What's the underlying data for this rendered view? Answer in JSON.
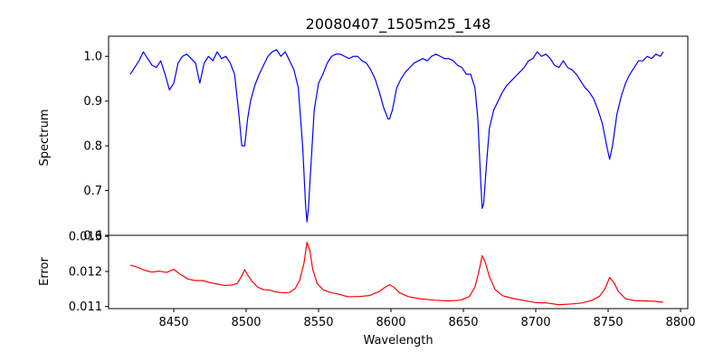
{
  "chart_data": [
    {
      "type": "line",
      "title": "20080407_1505m25_148",
      "xlabel": "",
      "ylabel": "Spectrum",
      "xlim": [
        8405,
        8805
      ],
      "ylim": [
        0.6,
        1.045
      ],
      "yticks": [
        0.6,
        0.7,
        0.8,
        0.9,
        1.0
      ],
      "ytick_labels": [
        "0.6",
        "0.7",
        "0.8",
        "0.9",
        "1.0"
      ],
      "grid": false,
      "series": [
        {
          "color": "#0000ff",
          "x": [
            8420,
            8423,
            8426,
            8429,
            8432,
            8435,
            8438,
            8441,
            8444,
            8447,
            8450,
            8453,
            8456,
            8459,
            8462,
            8465,
            8468,
            8471,
            8474,
            8477,
            8480,
            8483,
            8486,
            8489,
            8492,
            8495,
            8497,
            8499,
            8501,
            8503,
            8506,
            8509,
            8512,
            8515,
            8518,
            8521,
            8524,
            8527,
            8530,
            8533,
            8536,
            8539,
            8541,
            8542,
            8543,
            8545,
            8547,
            8550,
            8553,
            8556,
            8559,
            8562,
            8565,
            8568,
            8571,
            8574,
            8577,
            8580,
            8583,
            8586,
            8589,
            8592,
            8595,
            8598,
            8599,
            8601,
            8604,
            8607,
            8610,
            8613,
            8616,
            8619,
            8622,
            8625,
            8628,
            8631,
            8634,
            8637,
            8640,
            8643,
            8646,
            8649,
            8652,
            8655,
            8658,
            8660,
            8662,
            8663,
            8664,
            8666,
            8668,
            8671,
            8674,
            8677,
            8680,
            8683,
            8686,
            8689,
            8692,
            8695,
            8698,
            8701,
            8704,
            8707,
            8710,
            8713,
            8716,
            8719,
            8722,
            8725,
            8728,
            8731,
            8734,
            8737,
            8740,
            8743,
            8746,
            8749,
            8751,
            8753,
            8756,
            8759,
            8762,
            8765,
            8768,
            8771,
            8774,
            8777,
            8780,
            8783,
            8786,
            8788
          ],
          "y": [
            0.96,
            0.975,
            0.99,
            1.01,
            0.995,
            0.98,
            0.975,
            0.99,
            0.96,
            0.925,
            0.94,
            0.985,
            1.0,
            1.005,
            0.995,
            0.985,
            0.94,
            0.985,
            1.0,
            0.99,
            1.01,
            0.995,
            1.0,
            0.985,
            0.96,
            0.87,
            0.8,
            0.8,
            0.86,
            0.9,
            0.935,
            0.96,
            0.98,
            1.0,
            1.01,
            1.015,
            1.0,
            1.01,
            0.99,
            0.97,
            0.93,
            0.8,
            0.67,
            0.63,
            0.66,
            0.77,
            0.88,
            0.94,
            0.96,
            0.985,
            1.0,
            1.005,
            1.005,
            1.0,
            0.995,
            1.0,
            1.0,
            0.99,
            0.985,
            0.97,
            0.95,
            0.92,
            0.885,
            0.86,
            0.86,
            0.88,
            0.93,
            0.95,
            0.965,
            0.975,
            0.985,
            0.99,
            0.995,
            0.99,
            1.0,
            1.005,
            1.0,
            0.995,
            0.995,
            0.99,
            0.98,
            0.975,
            0.96,
            0.96,
            0.93,
            0.86,
            0.72,
            0.66,
            0.67,
            0.76,
            0.84,
            0.88,
            0.9,
            0.92,
            0.935,
            0.945,
            0.955,
            0.965,
            0.975,
            0.99,
            0.995,
            1.01,
            1.0,
            1.005,
            0.995,
            0.98,
            0.975,
            0.99,
            0.975,
            0.97,
            0.96,
            0.945,
            0.93,
            0.92,
            0.905,
            0.88,
            0.85,
            0.8,
            0.77,
            0.8,
            0.87,
            0.91,
            0.94,
            0.96,
            0.975,
            0.99,
            0.99,
            1.0,
            0.995,
            1.005,
            1.0,
            1.01
          ]
        }
      ]
    },
    {
      "type": "line",
      "title": "",
      "xlabel": "Wavelength",
      "ylabel": "Error",
      "xlim": [
        8405,
        8805
      ],
      "ylim": [
        0.01094,
        0.01303
      ],
      "xticks": [
        8450,
        8500,
        8550,
        8600,
        8650,
        8700,
        8750,
        8800
      ],
      "xtick_labels": [
        "8450",
        "8500",
        "8550",
        "8600",
        "8650",
        "8700",
        "8750",
        "8800"
      ],
      "yticks": [
        0.011,
        0.012,
        0.013
      ],
      "ytick_labels": [
        "0.011",
        "0.012",
        "0.013"
      ],
      "grid": false,
      "series": [
        {
          "color": "#ff0000",
          "x": [
            8420,
            8425,
            8430,
            8435,
            8440,
            8445,
            8450,
            8455,
            8460,
            8465,
            8470,
            8475,
            8480,
            8485,
            8490,
            8494,
            8497,
            8499,
            8501,
            8504,
            8508,
            8512,
            8516,
            8520,
            8525,
            8530,
            8534,
            8537,
            8540,
            8542,
            8544,
            8546,
            8549,
            8553,
            8558,
            8563,
            8570,
            8577,
            8585,
            8592,
            8596,
            8599,
            8602,
            8606,
            8612,
            8620,
            8630,
            8640,
            8648,
            8654,
            8658,
            8661,
            8663,
            8665,
            8668,
            8672,
            8677,
            8684,
            8692,
            8700,
            8708,
            8716,
            8724,
            8732,
            8739,
            8744,
            8748,
            8751,
            8754,
            8757,
            8762,
            8768,
            8775,
            8782,
            8788
          ],
          "y": [
            0.01218,
            0.01212,
            0.01203,
            0.01198,
            0.01201,
            0.01197,
            0.01206,
            0.0119,
            0.01178,
            0.01174,
            0.01174,
            0.01168,
            0.01164,
            0.0116,
            0.01161,
            0.01166,
            0.01188,
            0.01205,
            0.0119,
            0.01172,
            0.01155,
            0.01148,
            0.01147,
            0.01142,
            0.01139,
            0.0114,
            0.01152,
            0.01175,
            0.01225,
            0.01283,
            0.0126,
            0.01206,
            0.01166,
            0.01148,
            0.0114,
            0.01136,
            0.01128,
            0.01128,
            0.01131,
            0.01143,
            0.01155,
            0.01162,
            0.01155,
            0.01139,
            0.01128,
            0.01122,
            0.01118,
            0.01116,
            0.01118,
            0.01128,
            0.01155,
            0.01205,
            0.01245,
            0.01228,
            0.01185,
            0.01148,
            0.01131,
            0.01123,
            0.01117,
            0.01111,
            0.0111,
            0.01105,
            0.01107,
            0.0111,
            0.01118,
            0.01129,
            0.01152,
            0.01183,
            0.01168,
            0.01143,
            0.01122,
            0.01117,
            0.01116,
            0.01115,
            0.01112
          ]
        }
      ]
    }
  ]
}
